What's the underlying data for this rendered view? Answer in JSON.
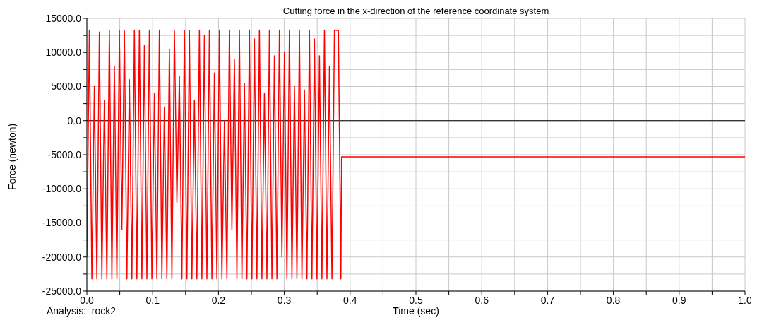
{
  "chart_data": {
    "type": "line",
    "title": "Cutting force in the x-direction of the reference coordinate system",
    "xlabel": "Time (sec)",
    "ylabel": "Force (newton)",
    "annotations": [
      "Analysis:  rock2"
    ],
    "x": [
      0,
      0.0038,
      0.0076,
      0.0114,
      0.0152,
      0.019,
      0.0228,
      0.0266,
      0.0304,
      0.0342,
      0.038,
      0.0418,
      0.0456,
      0.0494,
      0.0532,
      0.057,
      0.0608,
      0.0646,
      0.0684,
      0.0722,
      0.076,
      0.0798,
      0.0836,
      0.0874,
      0.0912,
      0.095,
      0.0988,
      0.1026,
      0.1064,
      0.1102,
      0.114,
      0.1178,
      0.1216,
      0.1254,
      0.1292,
      0.133,
      0.1368,
      0.1406,
      0.1444,
      0.1482,
      0.152,
      0.1558,
      0.1596,
      0.1634,
      0.1672,
      0.171,
      0.1748,
      0.1786,
      0.1824,
      0.1862,
      0.19,
      0.1938,
      0.1976,
      0.2014,
      0.2052,
      0.209,
      0.2128,
      0.2166,
      0.2204,
      0.2242,
      0.228,
      0.2318,
      0.2356,
      0.2394,
      0.2432,
      0.247,
      0.2508,
      0.2546,
      0.2584,
      0.2622,
      0.266,
      0.2698,
      0.2736,
      0.2774,
      0.2812,
      0.285,
      0.2888,
      0.2926,
      0.2964,
      0.3002,
      0.304,
      0.3078,
      0.3116,
      0.3154,
      0.3192,
      0.323,
      0.3268,
      0.3306,
      0.3344,
      0.3382,
      0.342,
      0.3458,
      0.3496,
      0.3534,
      0.3572,
      0.361,
      0.3648,
      0.3686,
      0.3724,
      0.3762,
      0.3822,
      0.386,
      0.387,
      1.0
    ],
    "series": [
      {
        "color": "#ff0000",
        "values": [
          -20000,
          13300,
          -23200,
          5000,
          -23200,
          13000,
          -23200,
          3000,
          -23200,
          13300,
          -23200,
          8000,
          -23200,
          13300,
          -16000,
          13200,
          -23200,
          6000,
          -23200,
          13300,
          -23200,
          13200,
          -23200,
          11000,
          -23200,
          13300,
          -23200,
          4000,
          -23200,
          13300,
          -23200,
          2000,
          -23200,
          10500,
          -23200,
          13300,
          -12000,
          6500,
          -23200,
          13300,
          -23200,
          13200,
          -23200,
          3000,
          -23200,
          13300,
          -23200,
          12500,
          -23200,
          13300,
          -23200,
          7000,
          -23200,
          13300,
          -23200,
          0,
          -23200,
          13300,
          -16000,
          9000,
          -23200,
          13300,
          -23200,
          5500,
          -23200,
          13300,
          -23200,
          12000,
          -23200,
          13300,
          -23200,
          4000,
          -23200,
          13300,
          -23200,
          9500,
          -23200,
          13300,
          -20000,
          10000,
          -23200,
          13300,
          -23200,
          5000,
          -23200,
          13300,
          -23200,
          4500,
          -23200,
          13300,
          -23200,
          12000,
          -23200,
          9500,
          -23200,
          13300,
          -23200,
          8000,
          -23200,
          13300,
          13200,
          -23200,
          -5300,
          -5300
        ]
      }
    ],
    "xlim": [
      0,
      1
    ],
    "xticks": [
      {
        "value": 0,
        "label": "0.0"
      },
      {
        "value": 0.05,
        "label": null
      },
      {
        "value": 0.1,
        "label": "0.1"
      },
      {
        "value": 0.15,
        "label": null
      },
      {
        "value": 0.2,
        "label": "0.2"
      },
      {
        "value": 0.25,
        "label": null
      },
      {
        "value": 0.3,
        "label": "0.3"
      },
      {
        "value": 0.35,
        "label": null
      },
      {
        "value": 0.4,
        "label": "0.4"
      },
      {
        "value": 0.45,
        "label": null
      },
      {
        "value": 0.5,
        "label": "0.5"
      },
      {
        "value": 0.55,
        "label": null
      },
      {
        "value": 0.6,
        "label": "0.6"
      },
      {
        "value": 0.65,
        "label": null
      },
      {
        "value": 0.7,
        "label": "0.7"
      },
      {
        "value": 0.75,
        "label": null
      },
      {
        "value": 0.8,
        "label": "0.8"
      },
      {
        "value": 0.85,
        "label": null
      },
      {
        "value": 0.9,
        "label": "0.9"
      },
      {
        "value": 0.95,
        "label": null
      },
      {
        "value": 1,
        "label": "1.0"
      }
    ],
    "ylim": [
      -25000,
      15000
    ],
    "yticks": [
      {
        "value": -25000,
        "label": "-25000.0"
      },
      {
        "value": -22500,
        "label": null
      },
      {
        "value": -20000,
        "label": "-20000.0"
      },
      {
        "value": -17500,
        "label": null
      },
      {
        "value": -15000,
        "label": "-15000.0"
      },
      {
        "value": -12500,
        "label": null
      },
      {
        "value": -10000,
        "label": "-10000.0"
      },
      {
        "value": -7500,
        "label": null
      },
      {
        "value": -5000,
        "label": "-5000.0"
      },
      {
        "value": -2500,
        "label": null
      },
      {
        "value": 0,
        "label": "0.0"
      },
      {
        "value": 2500,
        "label": null
      },
      {
        "value": 5000,
        "label": "5000.0"
      },
      {
        "value": 7500,
        "label": null
      },
      {
        "value": 10000,
        "label": "10000.0"
      },
      {
        "value": 12500,
        "label": null
      },
      {
        "value": 15000,
        "label": "15000.0"
      }
    ],
    "ref_lines": [
      {
        "axis": "y",
        "value": 0,
        "color": "#000000"
      }
    ],
    "grid": true,
    "marker": "none",
    "line_style": "solid"
  }
}
